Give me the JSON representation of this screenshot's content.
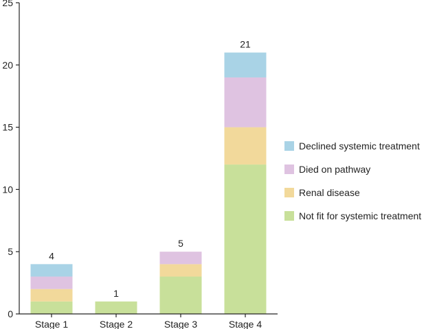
{
  "chart_data": {
    "type": "bar",
    "stacked": true,
    "categories": [
      "Stage 1",
      "Stage 2",
      "Stage 3",
      "Stage 4"
    ],
    "series": [
      {
        "name": "Not fit for systemic treatment",
        "values": [
          1,
          1,
          3,
          12
        ],
        "color": "#c8e09a"
      },
      {
        "name": "Renal disease",
        "values": [
          1,
          0,
          1,
          3
        ],
        "color": "#f2d99b"
      },
      {
        "name": "Died on pathway",
        "values": [
          1,
          0,
          1,
          4
        ],
        "color": "#dfc3e1"
      },
      {
        "name": "Declined systemic treatment",
        "values": [
          1,
          0,
          0,
          2
        ],
        "color": "#a9d3e6"
      }
    ],
    "totals": [
      "4",
      "1",
      "5",
      "21"
    ],
    "ylim": [
      0,
      25
    ],
    "yticks": [
      "0",
      "5",
      "10",
      "15",
      "20",
      "25"
    ],
    "grid": false,
    "legend_position": "right",
    "legend_order": [
      "Declined systemic treatment",
      "Died on pathway",
      "Renal disease",
      "Not fit for systemic treatment"
    ]
  }
}
